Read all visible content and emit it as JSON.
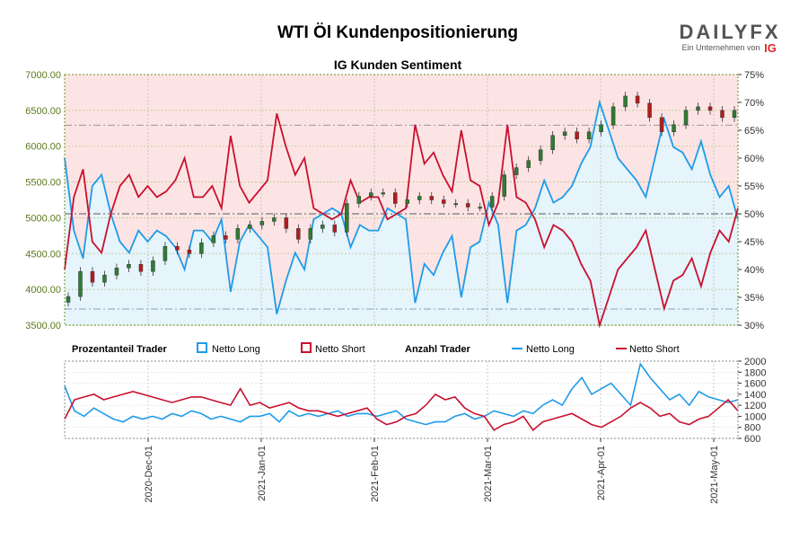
{
  "title": "WTI Öl Kundenpositionierung",
  "subtitle": "IG Kunden Sentiment",
  "logo": {
    "text": "DAILYFX",
    "sub": "Ein Unternehmen von",
    "ig": "IG"
  },
  "legend": {
    "pct_header": "Prozentanteil Trader",
    "count_header": "Anzahl Trader",
    "long": "Netto Long",
    "short": "Netto Short"
  },
  "colors": {
    "long": "#1e9be8",
    "short": "#c8102e",
    "candle_up": "#2e7d32",
    "candle_down": "#b71c1c",
    "short_zone": "#fde4e4",
    "long_zone": "#e6f4fb",
    "left_axis": "#5a7a1a"
  },
  "chart_data": [
    {
      "type": "candlestick",
      "name": "price",
      "yticks": [
        "7000.00",
        "6500.00",
        "6000.00",
        "5500.00",
        "5000.00",
        "4500.00",
        "4000.00",
        "3500.00"
      ],
      "ylim": [
        3500,
        7000
      ],
      "close": [
        3900,
        4250,
        4100,
        4200,
        4300,
        4350,
        4250,
        4400,
        4600,
        4550,
        4500,
        4650,
        4750,
        4700,
        4850,
        4900,
        4950,
        5000,
        4850,
        4700,
        4850,
        4900,
        4800,
        5200,
        5300,
        5350,
        5350,
        5200,
        5250,
        5300,
        5250,
        5200,
        5200,
        5150,
        5150,
        5300,
        5600,
        5700,
        5800,
        5950,
        6150,
        6200,
        6100,
        6200,
        6300,
        6550,
        6700,
        6600,
        6400,
        6200,
        6300,
        6500,
        6550,
        6500,
        6400,
        6500
      ]
    },
    {
      "type": "line",
      "name": "pct_long",
      "yticks": [
        "75%",
        "70%",
        "65%",
        "60%",
        "55%",
        "50%",
        "45%",
        "40%",
        "35%",
        "30%"
      ],
      "ylim": [
        30,
        75
      ],
      "values": [
        60,
        47,
        42,
        55,
        57,
        50,
        45,
        43,
        47,
        45,
        47,
        46,
        44,
        40,
        47,
        47,
        45,
        49,
        36,
        45,
        48,
        46,
        44,
        32,
        38,
        43,
        40,
        49,
        50,
        51,
        50,
        44,
        48,
        47,
        47,
        51,
        50,
        49,
        34,
        41,
        39,
        43,
        46,
        35,
        44,
        45,
        52,
        48,
        34,
        47,
        48,
        51,
        56,
        52,
        53,
        55,
        59,
        62,
        70,
        65,
        60,
        58,
        56,
        53,
        60,
        67,
        62,
        61,
        58,
        63,
        57,
        53,
        55,
        49
      ]
    },
    {
      "type": "line",
      "name": "pct_short",
      "values": [
        40,
        53,
        58,
        45,
        43,
        50,
        55,
        57,
        53,
        55,
        53,
        54,
        56,
        60,
        53,
        53,
        55,
        51,
        64,
        55,
        52,
        54,
        56,
        68,
        62,
        57,
        60,
        51,
        50,
        49,
        50,
        56,
        52,
        53,
        53,
        49,
        50,
        51,
        66,
        59,
        61,
        57,
        54,
        65,
        56,
        55,
        48,
        52,
        66,
        53,
        52,
        49,
        44,
        48,
        47,
        45,
        41,
        38,
        30,
        35,
        40,
        42,
        44,
        47,
        40,
        33,
        38,
        39,
        42,
        37,
        43,
        47,
        45,
        51
      ]
    },
    {
      "type": "line",
      "name": "count_long",
      "yticks": [
        "2000",
        "1800",
        "1600",
        "1400",
        "1200",
        "1000",
        "800",
        "600"
      ],
      "ylim": [
        600,
        2000
      ],
      "values": [
        1550,
        1100,
        1000,
        1150,
        1050,
        950,
        900,
        1000,
        950,
        1000,
        950,
        1050,
        1000,
        1100,
        1050,
        950,
        1000,
        950,
        900,
        1000,
        1000,
        1050,
        900,
        1100,
        1000,
        1050,
        1000,
        1050,
        1100,
        1000,
        1050,
        1050,
        1000,
        1050,
        1100,
        950,
        900,
        850,
        900,
        900,
        1000,
        1050,
        950,
        1000,
        1100,
        1050,
        1000,
        1100,
        1050,
        1200,
        1300,
        1200,
        1500,
        1700,
        1400,
        1500,
        1600,
        1400,
        1200,
        1950,
        1700,
        1500,
        1300,
        1400,
        1200,
        1450,
        1350,
        1300,
        1250,
        1300
      ]
    },
    {
      "type": "line",
      "name": "count_short",
      "values": [
        950,
        1300,
        1350,
        1400,
        1300,
        1350,
        1400,
        1450,
        1400,
        1350,
        1300,
        1250,
        1300,
        1350,
        1350,
        1300,
        1250,
        1200,
        1500,
        1200,
        1250,
        1150,
        1200,
        1250,
        1150,
        1100,
        1100,
        1050,
        1000,
        1050,
        1100,
        1150,
        950,
        850,
        900,
        1000,
        1050,
        1200,
        1400,
        1300,
        1350,
        1150,
        1050,
        1000,
        750,
        850,
        900,
        1000,
        750,
        900,
        950,
        1000,
        1050,
        950,
        850,
        800,
        900,
        1000,
        1150,
        1250,
        1150,
        1000,
        1050,
        900,
        850,
        950,
        1000,
        1150,
        1300,
        1100
      ]
    }
  ],
  "xticks": [
    "2020-Dec-01",
    "2021-Jan-01",
    "2021-Feb-01",
    "2021-Mar-01",
    "2021-Apr-01",
    "2021-May-01"
  ]
}
